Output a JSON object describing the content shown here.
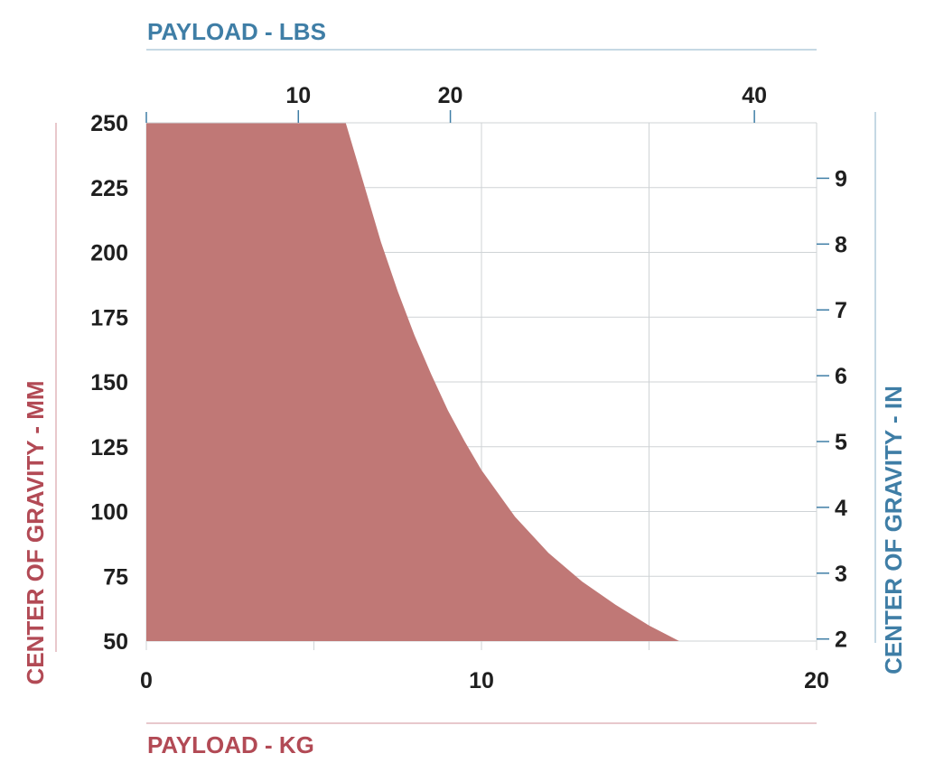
{
  "colors": {
    "area": "#c07876",
    "lbs_accent": "#3f7ea6",
    "kg_accent": "#b24a55",
    "grid": "#cfd3d6",
    "text": "#1f1f1f"
  },
  "chart_data": {
    "type": "area",
    "title": "",
    "axes": {
      "x_bottom": {
        "label": "PAYLOAD - KG",
        "range": [
          0,
          20
        ],
        "ticks": [
          0,
          10,
          20
        ],
        "grid": [
          0,
          5,
          10,
          15,
          20
        ]
      },
      "x_top": {
        "label": "PAYLOAD - LBS",
        "ticks": [
          10,
          20,
          40
        ],
        "tick_labels": [
          "10",
          "20",
          "40"
        ]
      },
      "y_left": {
        "label": "CENTER OF GRAVITY - MM",
        "range": [
          50,
          250
        ],
        "ticks": [
          50,
          75,
          100,
          125,
          150,
          175,
          200,
          225,
          250
        ]
      },
      "y_right": {
        "label": "CENTER OF GRAVITY - IN",
        "ticks": [
          2,
          3,
          4,
          5,
          6,
          7,
          8,
          9
        ]
      }
    },
    "grid": true,
    "series": [
      {
        "x": [
          0,
          5.95,
          6.5,
          7.0,
          7.5,
          8.0,
          8.5,
          9.0,
          9.5,
          10.0,
          11.0,
          12.0,
          13.0,
          14.0,
          15.0,
          15.9
        ],
        "y": [
          250,
          250,
          226,
          204,
          185,
          168,
          153,
          139,
          127,
          116,
          98,
          84,
          73,
          64,
          56,
          50
        ]
      }
    ]
  }
}
